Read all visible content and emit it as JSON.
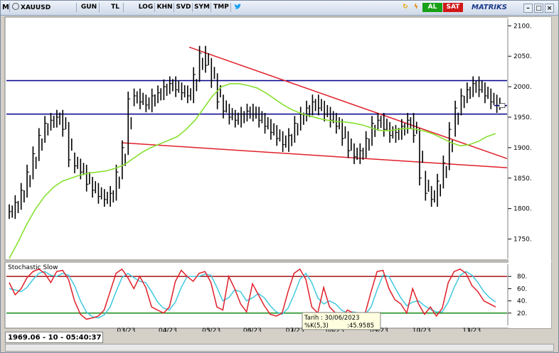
{
  "toolbar": {
    "m_label": "M",
    "symbol": "XAUUSD",
    "buttons": [
      "GUN",
      "TL",
      "LOG",
      "KHN",
      "SVD",
      "SYM",
      "TMP"
    ],
    "al_label": "AL",
    "sat_label": "SAT",
    "brand": "MATRIKS"
  },
  "colors": {
    "background": "#ffffff",
    "price_bars": "#000000",
    "support_resistance": "#00008b",
    "trendline": "#e0202a",
    "moving_average": "#88e030",
    "stoch_k": "#e0202a",
    "stoch_d": "#40c8e0",
    "stoch_upper": "#a00000",
    "stoch_lower": "#008000"
  },
  "status": {
    "readout": "1969.06 - 10 - 05:40:37"
  },
  "tooltip": {
    "date_line": "Tarih : 30/06/2023",
    "value_label": "%K(5,3)",
    "value": ":45.9585"
  },
  "chart_data": [
    {
      "type": "line",
      "title": "",
      "x_ticks": [
        "03/23",
        "04/23",
        "05/23",
        "06/23",
        "07/23",
        "08/23",
        "09/23",
        "10/23",
        "11/23"
      ],
      "y_ticks": [
        2100,
        2050,
        2000,
        1950,
        1900,
        1850,
        1800,
        1750
      ],
      "ylim": [
        1718,
        2112
      ],
      "horizontal_lines": [
        2010,
        1955
      ],
      "current_marker": 1969,
      "trendlines": [
        {
          "from": [
            0.365,
            2065
          ],
          "to": [
            1.0,
            1882
          ]
        },
        {
          "from": [
            0.23,
            1908
          ],
          "to": [
            1.0,
            1867
          ]
        }
      ],
      "price_series_close": [
        1795,
        1810,
        1830,
        1860,
        1890,
        1920,
        1940,
        1945,
        1950,
        1930,
        1880,
        1870,
        1860,
        1840,
        1830,
        1820,
        1815,
        1825,
        1860,
        1900,
        1980,
        1985,
        1975,
        1970,
        1985,
        1990,
        2000,
        2005,
        1995,
        1990,
        1985,
        2020,
        2055,
        2035,
        2010,
        1975,
        1960,
        1950,
        1945,
        1955,
        1960,
        1955,
        1945,
        1935,
        1925,
        1915,
        1905,
        1920,
        1940,
        1955,
        1965,
        1975,
        1965,
        1955,
        1945,
        1935,
        1915,
        1895,
        1885,
        1895,
        1915,
        1940,
        1945,
        1930,
        1920,
        1925,
        1935,
        1945,
        1920,
        1850,
        1825,
        1815,
        1845,
        1875,
        1930,
        1965,
        1985,
        1995,
        2005,
        1995,
        1985,
        1975,
        1969
      ],
      "moving_average": [
        1718,
        1745,
        1775,
        1800,
        1820,
        1835,
        1845,
        1850,
        1855,
        1858,
        1860,
        1862,
        1866,
        1872,
        1882,
        1892,
        1900,
        1906,
        1912,
        1918,
        1930,
        1945,
        1965,
        1985,
        2000,
        2005,
        2005,
        2002,
        1998,
        1990,
        1980,
        1970,
        1962,
        1956,
        1952,
        1948,
        1945,
        1943,
        1942,
        1940,
        1937,
        1932,
        1928,
        1928,
        1930,
        1932,
        1930,
        1927,
        1922,
        1915,
        1908,
        1903,
        1905,
        1910,
        1918,
        1923
      ],
      "ma_start_frac": 0.0
    },
    {
      "type": "line",
      "title": "Stochastic Slow",
      "y_ticks": [
        80,
        60,
        40,
        20
      ],
      "ylim": [
        0,
        100
      ],
      "levels": [
        80,
        20
      ],
      "series": [
        {
          "name": "%K(5,3)",
          "values": [
            70,
            50,
            60,
            78,
            88,
            92,
            85,
            70,
            88,
            90,
            75,
            40,
            18,
            10,
            12,
            15,
            25,
            55,
            85,
            92,
            78,
            60,
            80,
            62,
            30,
            25,
            20,
            30,
            72,
            90,
            80,
            72,
            85,
            88,
            70,
            30,
            25,
            80,
            60,
            35,
            22,
            68,
            50,
            32,
            18,
            15,
            20,
            55,
            85,
            92,
            75,
            30,
            20,
            62,
            30,
            20,
            12,
            25,
            20,
            15,
            20,
            55,
            88,
            90,
            60,
            42,
            35,
            20,
            60,
            35,
            18,
            30,
            15,
            28,
            70,
            88,
            92,
            85,
            65,
            55,
            40,
            35,
            30
          ]
        },
        {
          "name": "%D",
          "values": [
            60,
            58,
            55,
            62,
            75,
            85,
            88,
            82,
            80,
            85,
            82,
            65,
            40,
            22,
            14,
            12,
            17,
            30,
            55,
            78,
            85,
            78,
            72,
            70,
            55,
            38,
            28,
            25,
            38,
            62,
            80,
            80,
            80,
            84,
            82,
            62,
            40,
            45,
            58,
            55,
            40,
            45,
            52,
            45,
            32,
            22,
            18,
            28,
            50,
            75,
            85,
            70,
            45,
            35,
            40,
            35,
            25,
            20,
            22,
            20,
            18,
            30,
            58,
            82,
            80,
            62,
            45,
            32,
            38,
            40,
            32,
            26,
            22,
            22,
            38,
            62,
            82,
            88,
            82,
            70,
            55,
            45,
            38
          ]
        }
      ]
    }
  ]
}
